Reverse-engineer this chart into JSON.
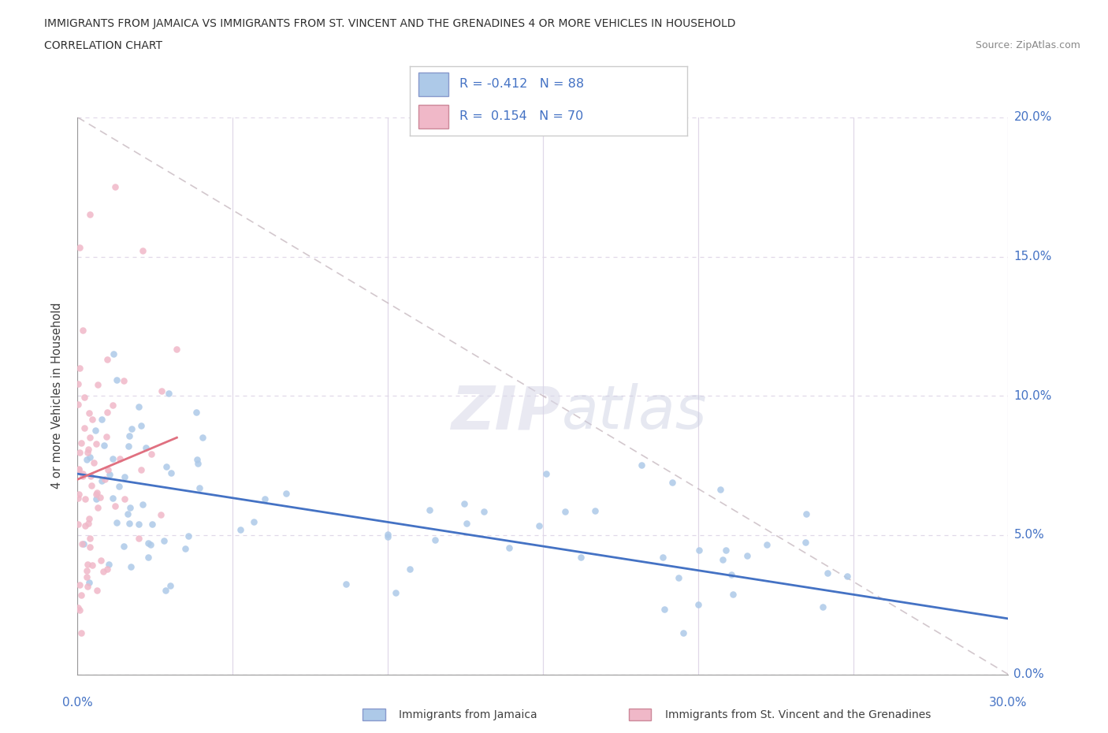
{
  "title_line1": "IMMIGRANTS FROM JAMAICA VS IMMIGRANTS FROM ST. VINCENT AND THE GRENADINES 4 OR MORE VEHICLES IN HOUSEHOLD",
  "title_line2": "CORRELATION CHART",
  "source": "Source: ZipAtlas.com",
  "ylabel": "4 or more Vehicles in Household",
  "jamaica_color": "#adc9e8",
  "svg_color": "#f0b8c8",
  "jamaica_line_color": "#4472c4",
  "svg_line_color": "#e07080",
  "diag_line_color": "#c0b0b8",
  "legend_jamaica": "Immigrants from Jamaica",
  "legend_svg": "Immigrants from St. Vincent and the Grenadines",
  "jamaica_R": -0.412,
  "jamaica_N": 88,
  "svg_R": 0.154,
  "svg_N": 70,
  "xlim": [
    0,
    30
  ],
  "ylim": [
    0,
    20
  ],
  "xtick_vals": [
    0,
    5,
    10,
    15,
    20,
    25,
    30
  ],
  "ytick_vals": [
    0,
    5,
    10,
    15,
    20
  ],
  "watermark": "ZIPatlas",
  "background": "#ffffff",
  "grid_color": "#e0d8e8",
  "label_color": "#4472c4",
  "text_color": "#404040"
}
